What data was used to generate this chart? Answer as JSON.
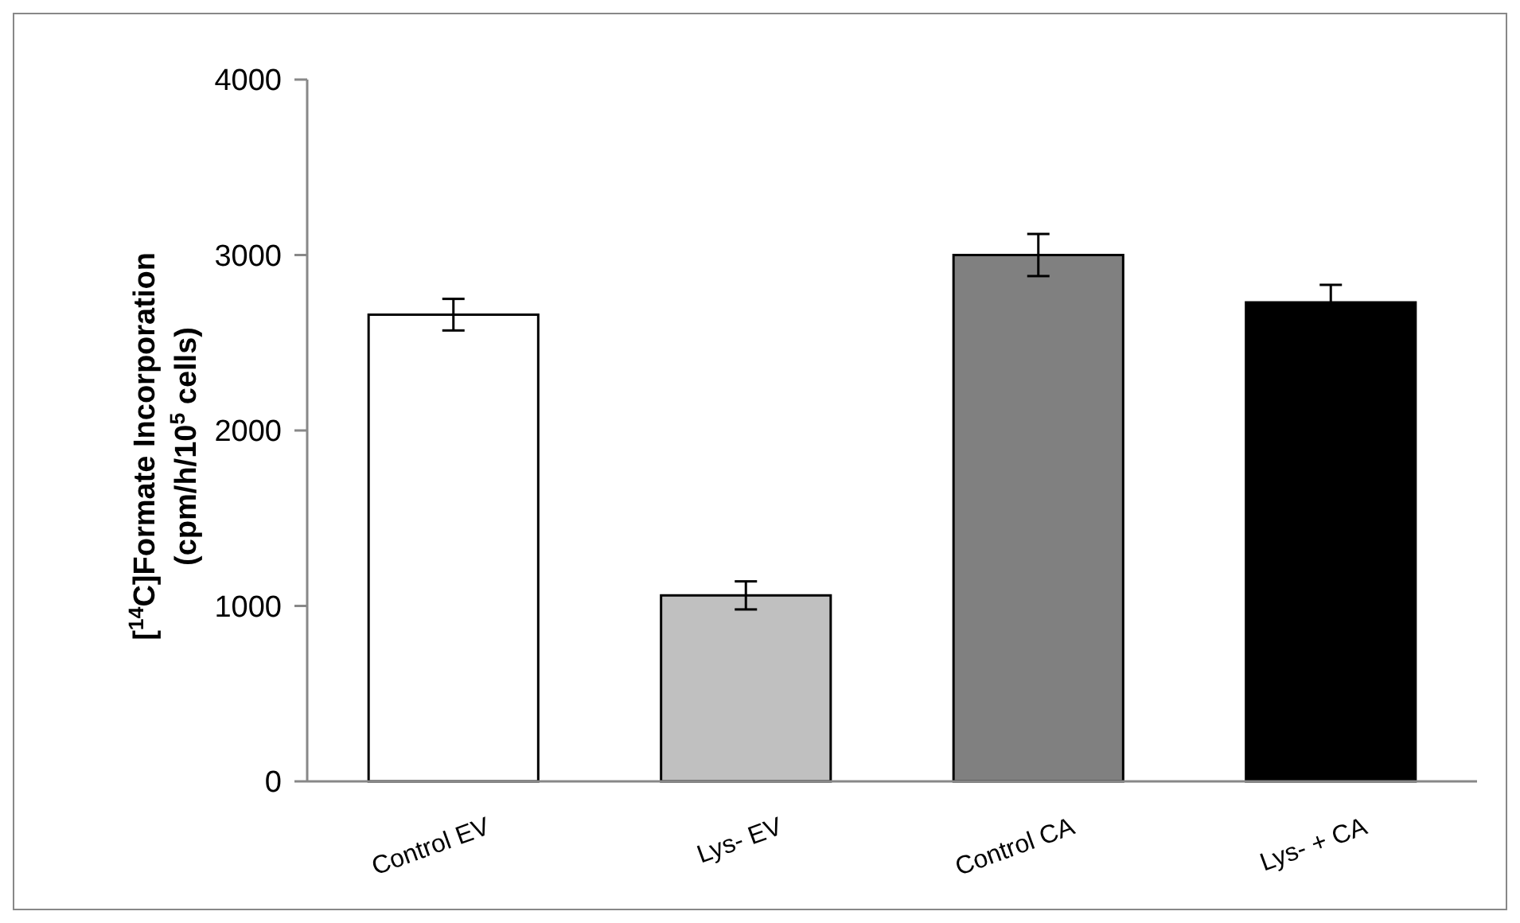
{
  "chart_data": {
    "type": "bar",
    "ylabel": "[$^{14}$C]Formate Incorporation\n(cpm/h/10$^{5}$ cells)",
    "categories": [
      "Control EV",
      "Lys- EV",
      "Control CA",
      "Lys- + CA"
    ],
    "values": [
      2660,
      1060,
      3000,
      2730
    ],
    "colors": [
      "#ffffff",
      "#c0c0c0",
      "#808080",
      "#000000"
    ],
    "errors": [
      90,
      80,
      120,
      100
    ],
    "ylim": [
      0,
      4000
    ],
    "yticks": [
      0,
      1000,
      2000,
      3000,
      4000
    ],
    "grid": false
  }
}
